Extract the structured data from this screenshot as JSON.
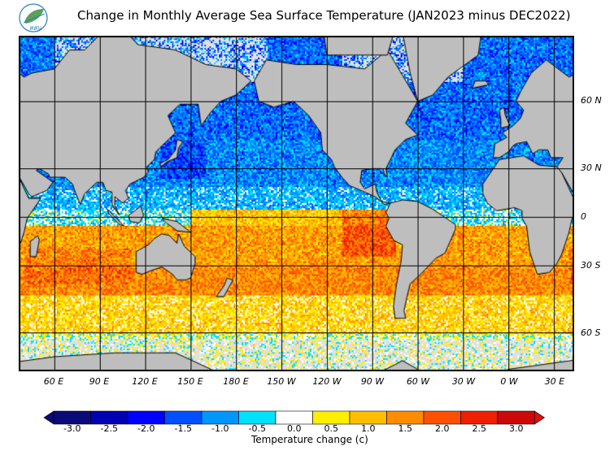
{
  "title": "Change in Monthly Average Sea Surface Temperature (JAN2023 minus DEC2022)",
  "logo": {
    "text": "สสน",
    "colors": [
      "#5aa05a",
      "#2a7fc0"
    ]
  },
  "map": {
    "projection": "mercator",
    "lon_range": [
      37,
      403
    ],
    "lat_range": [
      -72,
      76
    ],
    "land_color": "#bebebe",
    "ice_color": "#e0e0e0",
    "grid": true,
    "lat_labels": [
      {
        "lat": 60,
        "label": "60 N"
      },
      {
        "lat": 30,
        "label": "30 N"
      },
      {
        "lat": 0,
        "label": "0"
      },
      {
        "lat": -30,
        "label": "30 S"
      },
      {
        "lat": -60,
        "label": "60 S"
      }
    ],
    "lon_labels": [
      {
        "lon": 60,
        "label": "60 E"
      },
      {
        "lon": 90,
        "label": "90 E"
      },
      {
        "lon": 120,
        "label": "120 E"
      },
      {
        "lon": 150,
        "label": "150 E"
      },
      {
        "lon": 180,
        "label": "180 E"
      },
      {
        "lon": 210,
        "label": "150 W"
      },
      {
        "lon": 240,
        "label": "120 W"
      },
      {
        "lon": 270,
        "label": "90 W"
      },
      {
        "lon": 300,
        "label": "60 W"
      },
      {
        "lon": 330,
        "label": "30 W"
      },
      {
        "lon": 360,
        "label": "0 W"
      },
      {
        "lon": 390,
        "label": "30 E"
      }
    ]
  },
  "colorbar": {
    "label": "Temperature change  (c)",
    "ticks": [
      "-3.0",
      "-2.5",
      "-2.0",
      "-1.5",
      "-1.0",
      "-0.5",
      "0.0",
      "0.5",
      "1.0",
      "1.5",
      "2.0",
      "2.5",
      "3.0"
    ],
    "colors": [
      "#0a0a78",
      "#0000b4",
      "#0000ff",
      "#0050ff",
      "#0096ff",
      "#00e0ff",
      "#ffffff",
      "#ffee00",
      "#ffbe00",
      "#ff8c00",
      "#ff5000",
      "#ee2000",
      "#cc0808"
    ],
    "under_color": "#0a0a78",
    "over_color": "#dd1010"
  }
}
